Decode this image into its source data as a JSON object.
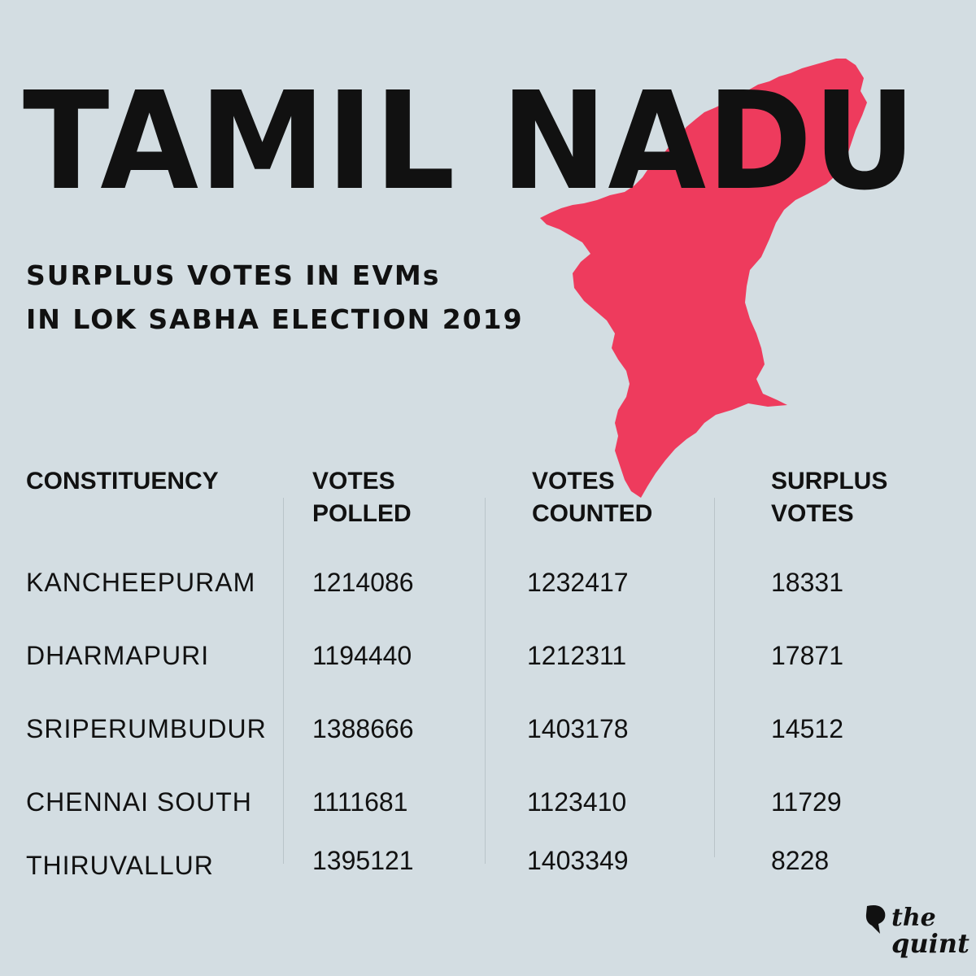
{
  "title": "TAMIL NADU",
  "subtitle": {
    "line1": "SURPLUS  VOTES  IN  EVMs",
    "line2": "IN  LOK  SABHA  ELECTION  2019"
  },
  "colors": {
    "background": "#d3dde2",
    "map_fill": "#ee3b5d",
    "text": "#111111"
  },
  "logo": {
    "line1": "the",
    "line2": "quint"
  },
  "chart_data": {
    "type": "table",
    "columns": [
      {
        "line1": "CONSTITUENCY",
        "line2": ""
      },
      {
        "line1": "VOTES",
        "line2": "POLLED"
      },
      {
        "line1": "VOTES",
        "line2": "COUNTED"
      },
      {
        "line1": "SURPLUS",
        "line2": "VOTES"
      }
    ],
    "rows": [
      {
        "constituency": "KANCHEEPURAM",
        "votes_polled": "1214086",
        "votes_counted": "1232417",
        "surplus_votes": "18331"
      },
      {
        "constituency": "DHARMAPURI",
        "votes_polled": "1194440",
        "votes_counted": "1212311",
        "surplus_votes": "17871"
      },
      {
        "constituency": "SRIPERUMBUDUR",
        "votes_polled": "1388666",
        "votes_counted": "1403178",
        "surplus_votes": "14512"
      },
      {
        "constituency": "CHENNAI SOUTH",
        "votes_polled": "1111681",
        "votes_counted": "1123410",
        "surplus_votes": "11729"
      },
      {
        "constituency": "THIRUVALLUR",
        "votes_polled": "1395121",
        "votes_counted": "1403349",
        "surplus_votes": "8228"
      }
    ]
  }
}
